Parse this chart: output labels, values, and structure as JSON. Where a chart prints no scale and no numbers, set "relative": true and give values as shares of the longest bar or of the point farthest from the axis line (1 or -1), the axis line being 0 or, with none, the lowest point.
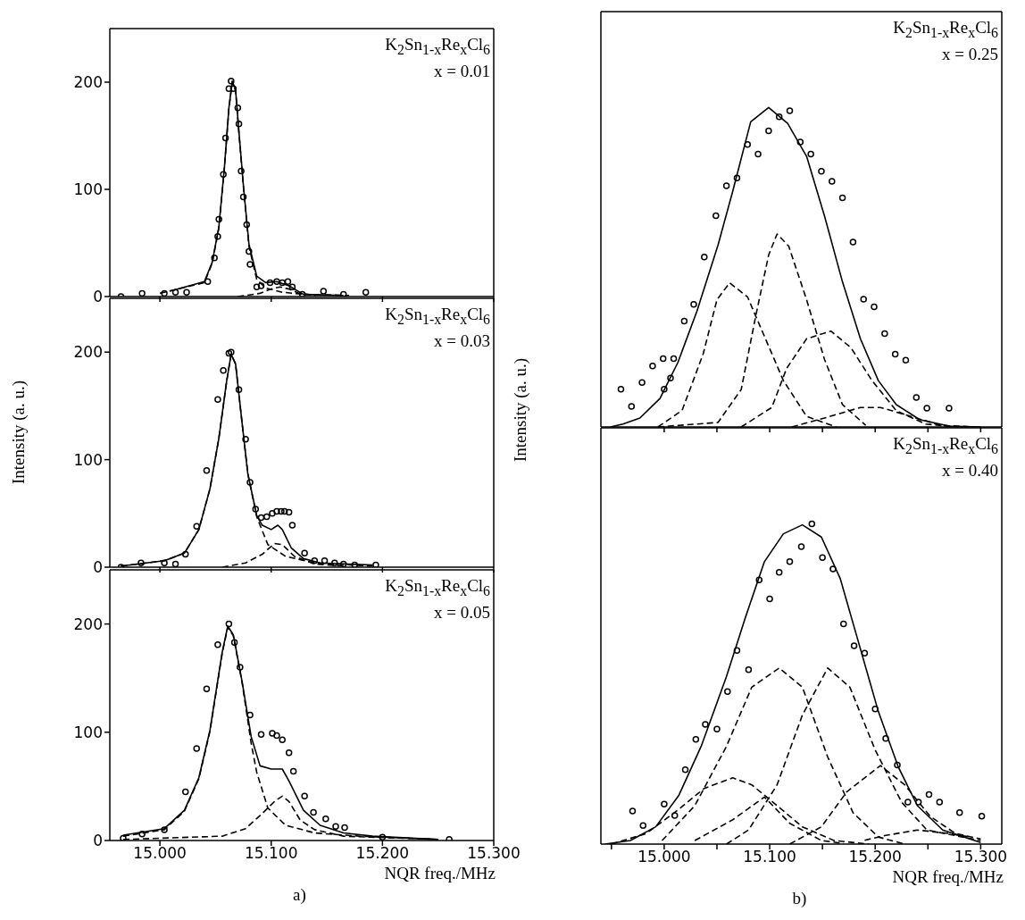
{
  "chart_data": [
    {
      "type": "line",
      "annotations": [
        "K$_{2}$Sn$_{1-x}$Re$_{x}$Cl$_{6}$",
        "x = 0.01"
      ],
      "xlim": [
        14.955,
        15.3
      ],
      "xticks": [
        15.0,
        15.1,
        15.2,
        15.3
      ],
      "ylim": [
        0,
        250
      ],
      "yticks": [
        0,
        100,
        200
      ],
      "tick_labels": "y",
      "series": [
        {
          "type": "scatter",
          "marker": "circle",
          "color": "#000000",
          "x": [
            14.965,
            14.984,
            15.004,
            15.014,
            15.024,
            15.043,
            15.049,
            15.052,
            15.053,
            15.057,
            15.059,
            15.062,
            15.064,
            15.066,
            15.07,
            15.071,
            15.073,
            15.075,
            15.078,
            15.08,
            15.081,
            15.087,
            15.091,
            15.099,
            15.105,
            15.11,
            15.115,
            15.119,
            15.128,
            15.147,
            15.165,
            15.185
          ],
          "values": [
            0,
            3,
            3,
            4,
            4,
            14,
            36,
            56,
            72,
            114,
            148,
            194,
            201,
            194,
            176,
            161,
            117,
            93,
            67,
            42,
            30,
            9,
            10,
            13,
            14,
            13,
            14,
            9,
            2,
            5,
            2,
            4
          ]
        },
        {
          "type": "line",
          "line_style": "solid",
          "color": "#000000",
          "x": [
            15.009,
            15.04,
            15.047,
            15.053,
            15.058,
            15.062,
            15.065,
            15.068,
            15.071,
            15.075,
            15.08,
            15.087,
            15.095,
            15.105,
            15.116,
            15.129,
            15.165
          ],
          "values": [
            5,
            14,
            32,
            65,
            121,
            176,
            201,
            193,
            154,
            104,
            49,
            19,
            13,
            14,
            10,
            2,
            1
          ]
        },
        {
          "type": "line",
          "line_style": "dashed",
          "color": "#000000",
          "x": [
            15.0,
            15.04,
            15.047,
            15.053,
            15.058,
            15.062,
            15.065,
            15.068,
            15.071,
            15.075,
            15.08,
            15.087,
            15.095,
            15.11,
            15.13,
            15.17
          ],
          "values": [
            3,
            13,
            31,
            64,
            120,
            175,
            200,
            192,
            153,
            103,
            47,
            16,
            8,
            4,
            2,
            1
          ]
        },
        {
          "type": "line",
          "line_style": "dashed",
          "color": "#000000",
          "x": [
            15.07,
            15.09,
            15.1,
            15.108,
            15.116,
            15.125,
            15.14
          ],
          "values": [
            0,
            3,
            7,
            9,
            7,
            3,
            1
          ]
        }
      ]
    },
    {
      "type": "line",
      "annotations": [
        "K$_{2}$Sn$_{1-x}$Re$_{x}$Cl$_{6}$",
        "x = 0.03"
      ],
      "ylabel": "Intensity (a. u.)",
      "xlim": [
        14.955,
        15.3
      ],
      "xticks": [
        15.0,
        15.1,
        15.2,
        15.3
      ],
      "ylim": [
        0,
        250
      ],
      "yticks": [
        0,
        100,
        200
      ],
      "tick_labels": "y",
      "series": [
        {
          "type": "scatter",
          "marker": "circle",
          "color": "#000000",
          "x": [
            14.965,
            14.983,
            15.004,
            15.014,
            15.023,
            15.033,
            15.042,
            15.052,
            15.057,
            15.062,
            15.064,
            15.071,
            15.077,
            15.081,
            15.086,
            15.091,
            15.096,
            15.101,
            15.105,
            15.109,
            15.112,
            15.116,
            15.119,
            15.13,
            15.139,
            15.148,
            15.157,
            15.165,
            15.175,
            15.194
          ],
          "values": [
            0,
            4,
            4,
            3,
            12,
            38,
            90,
            156,
            183,
            199,
            200,
            165,
            119,
            79,
            54,
            46,
            47,
            50,
            52,
            52,
            52,
            51,
            39,
            13,
            6,
            6,
            4,
            3,
            2,
            2
          ]
        },
        {
          "type": "line",
          "line_style": "solid",
          "color": "#000000",
          "x": [
            14.965,
            15.004,
            15.022,
            15.035,
            15.045,
            15.053,
            15.06,
            15.064,
            15.068,
            15.073,
            15.079,
            15.087,
            15.092,
            15.1,
            15.106,
            15.11,
            15.118,
            15.129,
            15.144,
            15.191
          ],
          "values": [
            1,
            6,
            13,
            35,
            73,
            120,
            173,
            198,
            189,
            142,
            87,
            48,
            39,
            35,
            39,
            35,
            18,
            8,
            4,
            2
          ]
        },
        {
          "type": "line",
          "line_style": "dashed",
          "color": "#000000",
          "x": [
            14.965,
            15.004,
            15.022,
            15.035,
            15.045,
            15.053,
            15.06,
            15.064,
            15.068,
            15.073,
            15.079,
            15.087,
            15.097,
            15.113,
            15.139,
            15.191
          ],
          "values": [
            1,
            6,
            13,
            35,
            73,
            120,
            173,
            198,
            189,
            142,
            87,
            47,
            21,
            10,
            4,
            1
          ]
        },
        {
          "type": "line",
          "line_style": "dashed",
          "color": "#000000",
          "x": [
            15.056,
            15.077,
            15.092,
            15.103,
            15.11,
            15.121,
            15.139,
            15.165
          ],
          "values": [
            0,
            4,
            12,
            22,
            21,
            10,
            3,
            1
          ]
        }
      ]
    },
    {
      "type": "line",
      "annotations": [
        "K$_{2}$Sn$_{1-x}$Re$_{x}$Cl$_{6}$",
        "x = 0.05",
        "a)"
      ],
      "xlabel": "NQR freq./MHz",
      "xlim": [
        14.955,
        15.3
      ],
      "xticks": [
        {
          "value": 15.0,
          "label": "15.000"
        },
        {
          "value": 15.1,
          "label": "15.100"
        },
        {
          "value": 15.2,
          "label": "15.200"
        },
        {
          "value": 15.3,
          "label": "15.300"
        }
      ],
      "ylim": [
        0,
        250
      ],
      "yticks": [
        0,
        100,
        200
      ],
      "series": [
        {
          "type": "scatter",
          "marker": "circle",
          "color": "#000000",
          "x": [
            14.967,
            14.984,
            15.004,
            15.023,
            15.033,
            15.042,
            15.052,
            15.062,
            15.067,
            15.072,
            15.081,
            15.091,
            15.101,
            15.105,
            15.11,
            15.116,
            15.12,
            15.13,
            15.138,
            15.149,
            15.158,
            15.166,
            15.2,
            15.26
          ],
          "values": [
            2,
            6,
            10,
            45,
            85,
            140,
            181,
            200,
            183,
            160,
            116,
            98,
            99,
            97,
            93,
            81,
            64,
            41,
            26,
            20,
            13,
            12,
            3,
            1
          ]
        },
        {
          "type": "line",
          "line_style": "solid",
          "color": "#000000",
          "x": [
            14.967,
            15.004,
            15.022,
            15.035,
            15.045,
            15.056,
            15.061,
            15.066,
            15.074,
            15.082,
            15.09,
            15.1,
            15.11,
            15.116,
            15.129,
            15.144,
            15.165,
            15.191,
            15.25
          ],
          "values": [
            5,
            11,
            28,
            58,
            102,
            174,
            198,
            190,
            146,
            96,
            69,
            66,
            66,
            55,
            28,
            14,
            7,
            4,
            1
          ]
        },
        {
          "type": "line",
          "line_style": "dashed",
          "color": "#000000",
          "x": [
            14.967,
            15.004,
            15.022,
            15.035,
            15.045,
            15.056,
            15.061,
            15.066,
            15.074,
            15.082,
            15.087,
            15.097,
            15.113,
            15.139,
            15.179,
            15.25
          ],
          "values": [
            4,
            10,
            27,
            57,
            101,
            173,
            197,
            189,
            145,
            90,
            63,
            30,
            14,
            7,
            4,
            1
          ]
        },
        {
          "type": "line",
          "line_style": "dashed",
          "color": "#000000",
          "x": [
            14.967,
            15.056,
            15.077,
            15.092,
            15.104,
            15.11,
            15.116,
            15.126,
            15.139,
            15.165,
            15.25
          ],
          "values": [
            1,
            4,
            11,
            25,
            37,
            41,
            36,
            19,
            10,
            4,
            1
          ]
        }
      ]
    },
    {
      "type": "line",
      "relative": true,
      "annotations": [
        "K$_{2}$Sn$_{1-x}$Re$_{x}$Cl$_{6}$",
        "x = 0.25"
      ],
      "ylabel": "Intensity (a. u.)",
      "xlim": [
        14.94,
        15.32
      ],
      "xticks": [
        15.0,
        15.05,
        15.1,
        15.15,
        15.2,
        15.25,
        15.3
      ],
      "tick_labels": false,
      "series": [
        {
          "type": "scatter",
          "marker": "circle",
          "color": "#000000",
          "x": [
            14.959,
            14.969,
            14.979,
            14.989,
            14.999,
            15.0,
            15.006,
            15.009,
            15.019,
            15.028,
            15.038,
            15.049,
            15.059,
            15.069,
            15.079,
            15.089,
            15.099,
            15.109,
            15.119,
            15.129,
            15.139,
            15.149,
            15.159,
            15.169,
            15.179,
            15.189,
            15.199,
            15.209,
            15.219,
            15.229,
            15.239,
            15.249,
            15.27
          ],
          "values": [
            0.118,
            0.064,
            0.139,
            0.191,
            0.214,
            0.118,
            0.153,
            0.214,
            0.331,
            0.384,
            0.532,
            0.661,
            0.755,
            0.779,
            0.884,
            0.854,
            0.927,
            0.971,
            0.99,
            0.892,
            0.854,
            0.8,
            0.769,
            0.717,
            0.579,
            0.4,
            0.376,
            0.292,
            0.228,
            0.209,
            0.092,
            0.059,
            0.059
          ]
        },
        {
          "type": "line",
          "line_style": "solid",
          "color": "#000000",
          "x": [
            14.949,
            14.961,
            14.977,
            14.996,
            15.013,
            15.031,
            15.051,
            15.065,
            15.082,
            15.099,
            15.117,
            15.135,
            15.152,
            15.169,
            15.186,
            15.203,
            15.22,
            15.242,
            15.27,
            15.3
          ],
          "values": [
            0,
            0.009,
            0.028,
            0.089,
            0.202,
            0.362,
            0.569,
            0.738,
            0.955,
            1,
            0.95,
            0.847,
            0.66,
            0.454,
            0.276,
            0.145,
            0.07,
            0.023,
            0.003,
            0
          ]
        },
        {
          "type": "line",
          "line_style": "dashed",
          "color": "#000000",
          "x": [
            14.994,
            15.017,
            15.037,
            15.05,
            15.062,
            15.079,
            15.096,
            15.113,
            15.135,
            15.163
          ],
          "values": [
            0,
            0.052,
            0.229,
            0.398,
            0.451,
            0.407,
            0.276,
            0.145,
            0.033,
            0
          ]
        },
        {
          "type": "line",
          "line_style": "dashed",
          "color": "#000000",
          "x": [
            14.994,
            15.051,
            15.073,
            15.087,
            15.099,
            15.107,
            15.118,
            15.135,
            15.152,
            15.169,
            15.191
          ],
          "values": [
            0,
            0.014,
            0.117,
            0.351,
            0.538,
            0.604,
            0.566,
            0.398,
            0.211,
            0.07,
            0.005
          ]
        },
        {
          "type": "line",
          "line_style": "dashed",
          "color": "#000000",
          "x": [
            15.073,
            15.102,
            15.116,
            15.135,
            15.158,
            15.177,
            15.197,
            15.22,
            15.248,
            15.276
          ],
          "values": [
            0,
            0.061,
            0.183,
            0.276,
            0.3,
            0.248,
            0.145,
            0.051,
            0.009,
            0
          ]
        },
        {
          "type": "line",
          "line_style": "dashed",
          "color": "#000000",
          "x": [
            15.121,
            15.152,
            15.186,
            15.205,
            15.234,
            15.262,
            15.295
          ],
          "values": [
            0,
            0.028,
            0.061,
            0.061,
            0.033,
            0.005,
            0
          ]
        }
      ]
    },
    {
      "type": "line",
      "relative": true,
      "annotations": [
        "K$_{2}$Sn$_{1-x}$Re$_{x}$Cl$_{6}$",
        "x = 0.40",
        "b)"
      ],
      "xlabel": "NQR freq./MHz",
      "xlim": [
        14.94,
        15.32
      ],
      "xticks": [
        {
          "value": 14.95,
          "label": null
        },
        {
          "value": 15.0,
          "label": "15.000"
        },
        {
          "value": 15.05,
          "label": null
        },
        {
          "value": 15.1,
          "label": "15.100"
        },
        {
          "value": 15.15,
          "label": null
        },
        {
          "value": 15.2,
          "label": "15.200"
        },
        {
          "value": 15.25,
          "label": null
        },
        {
          "value": 15.3,
          "label": "15.300"
        }
      ],
      "tick_labels": "x",
      "series": [
        {
          "type": "scatter",
          "marker": "circle",
          "color": "#000000",
          "x": [
            14.97,
            14.98,
            15.0,
            15.01,
            15.02,
            15.03,
            15.039,
            15.05,
            15.06,
            15.069,
            15.08,
            15.09,
            15.1,
            15.109,
            15.119,
            15.13,
            15.14,
            15.15,
            15.16,
            15.17,
            15.18,
            15.19,
            15.2,
            15.21,
            15.221,
            15.231,
            15.241,
            15.251,
            15.261,
            15.28,
            15.301
          ],
          "values": [
            0.103,
            0.058,
            0.125,
            0.089,
            0.232,
            0.327,
            0.374,
            0.359,
            0.476,
            0.605,
            0.545,
            0.825,
            0.766,
            0.849,
            0.882,
            0.929,
            1,
            0.895,
            0.859,
            0.688,
            0.619,
            0.596,
            0.422,
            0.33,
            0.247,
            0.131,
            0.131,
            0.155,
            0.131,
            0.098,
            0.087
          ]
        },
        {
          "type": "line",
          "line_style": "solid",
          "color": "#000000",
          "x": [
            14.944,
            14.968,
            14.992,
            15.014,
            15.035,
            15.059,
            15.077,
            15.095,
            15.113,
            15.131,
            15.149,
            15.167,
            15.185,
            15.203,
            15.222,
            15.24,
            15.264,
            15.3
          ],
          "values": [
            0,
            0.011,
            0.054,
            0.153,
            0.305,
            0.523,
            0.708,
            0.882,
            0.969,
            0.997,
            0.959,
            0.828,
            0.621,
            0.414,
            0.24,
            0.12,
            0.044,
            0.005
          ]
        },
        {
          "type": "line",
          "line_style": "dashed",
          "color": "#000000",
          "x": [
            14.95,
            14.983,
            15.014,
            15.038,
            15.065,
            15.083,
            15.107,
            15.131,
            15.161,
            15.194
          ],
          "values": [
            0,
            0.033,
            0.109,
            0.174,
            0.207,
            0.185,
            0.12,
            0.054,
            0.011,
            0
          ]
        },
        {
          "type": "line",
          "line_style": "dashed",
          "color": "#000000",
          "x": [
            14.998,
            15.029,
            15.059,
            15.083,
            15.109,
            15.131,
            15.155,
            15.179,
            15.203,
            15.228
          ],
          "values": [
            0.011,
            0.12,
            0.305,
            0.49,
            0.55,
            0.49,
            0.272,
            0.098,
            0.022,
            0
          ]
        },
        {
          "type": "line",
          "line_style": "dashed",
          "color": "#000000",
          "x": [
            15.059,
            15.08,
            15.107,
            15.131,
            15.155,
            15.176,
            15.2,
            15.225,
            15.249,
            15.3
          ],
          "values": [
            0,
            0.044,
            0.185,
            0.403,
            0.55,
            0.49,
            0.294,
            0.131,
            0.044,
            0.011
          ]
        },
        {
          "type": "line",
          "line_style": "dashed",
          "color": "#000000",
          "x": [
            15.029,
            15.065,
            15.095,
            15.119,
            15.149,
            15.17
          ],
          "values": [
            0.011,
            0.076,
            0.147,
            0.065,
            0.011,
            0.002
          ]
        },
        {
          "type": "line",
          "line_style": "dashed",
          "color": "#000000",
          "x": [
            15.119,
            15.149,
            15.173,
            15.205,
            15.228,
            15.252,
            15.276,
            15.3
          ],
          "values": [
            0,
            0.054,
            0.163,
            0.245,
            0.185,
            0.087,
            0.033,
            0.016
          ]
        },
        {
          "type": "line",
          "line_style": "dashed",
          "color": "#000000",
          "x": [
            15.19,
            15.21,
            15.24,
            15.27,
            15.29
          ],
          "values": [
            0.012,
            0.027,
            0.044,
            0.033,
            0.022
          ]
        }
      ]
    }
  ]
}
